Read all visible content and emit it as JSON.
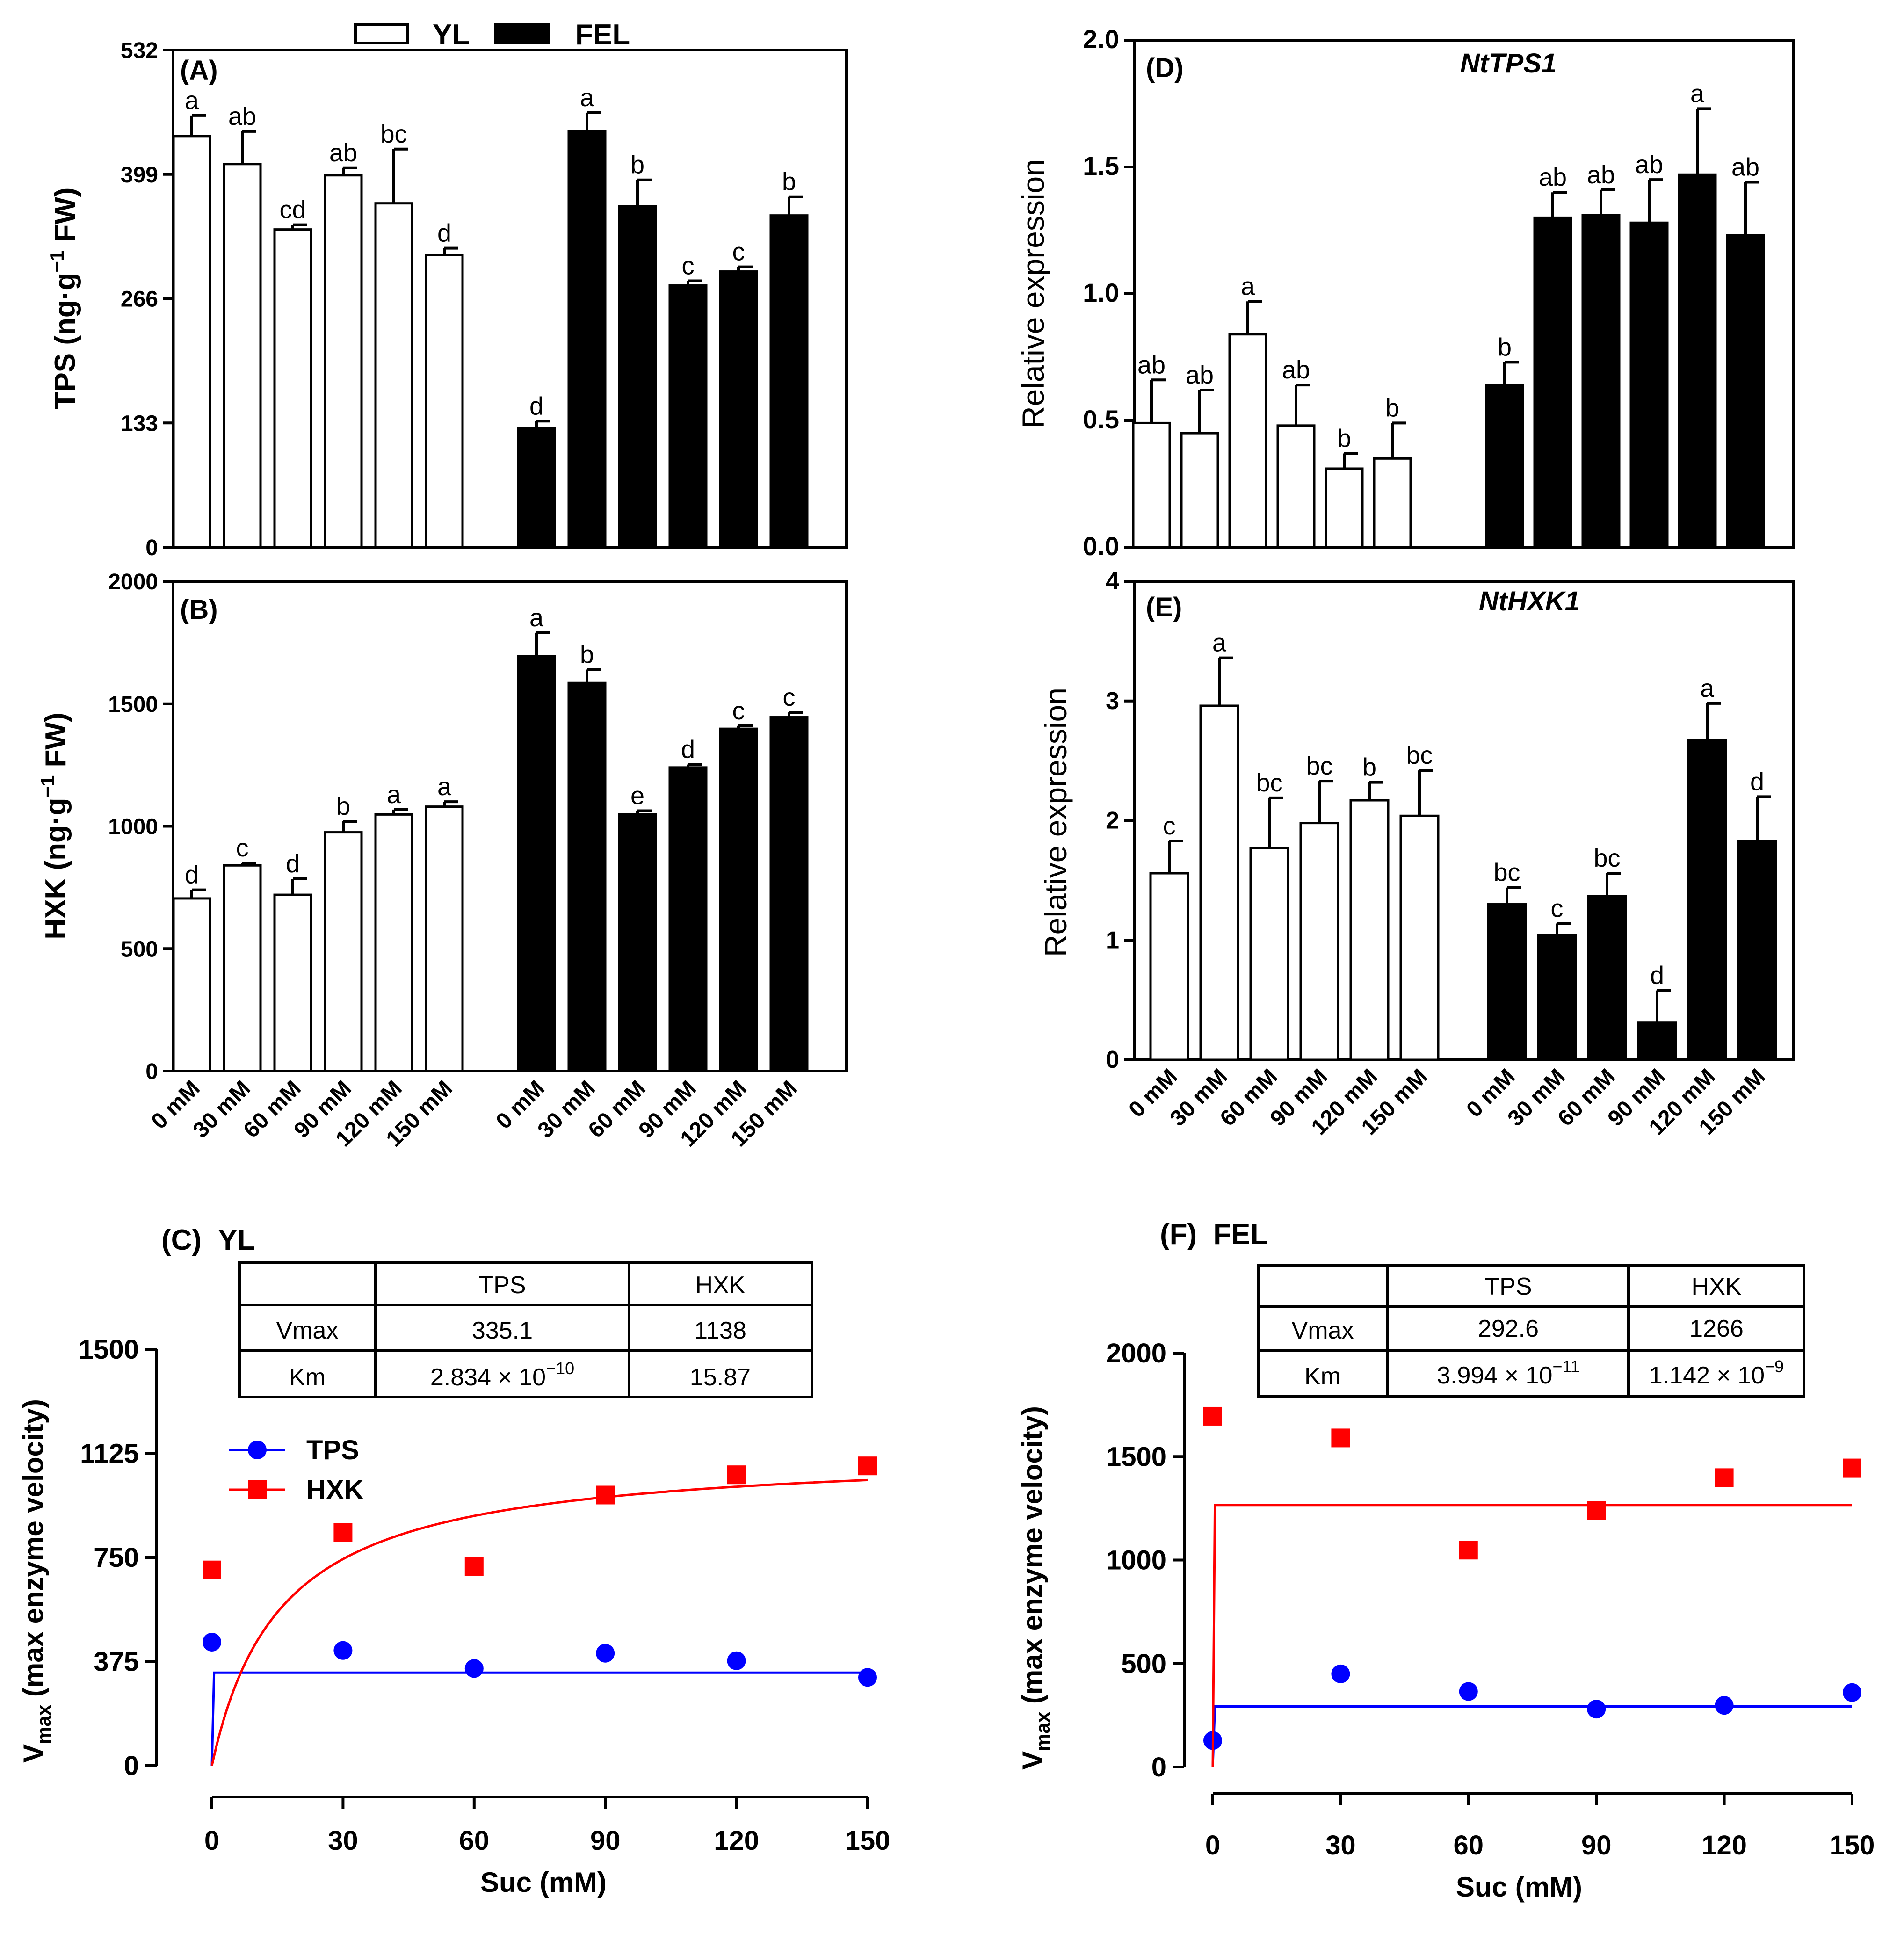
{
  "legend": {
    "yl_label": "YL",
    "fel_label": "FEL"
  },
  "colors": {
    "yl_fill": "#ffffff",
    "fel_fill": "#000000",
    "tps_series": "#0000ff",
    "hxk_series": "#ff0000",
    "axis": "#000000"
  },
  "chart_data": [
    {
      "id": "A",
      "panel_label": "(A)",
      "type": "bar",
      "title": "",
      "ylabel_main": "TPS (ng·g",
      "ylabel_sup": "−1",
      "ylabel_end": " FW)",
      "ylim": [
        0,
        532
      ],
      "yticks": [
        "0",
        "133",
        "266",
        "399",
        "532"
      ],
      "ytick_values": [
        0,
        133,
        266,
        399,
        532
      ],
      "categories": [
        "0 mM",
        "30 mM",
        "60 mM",
        "90 mM",
        "120 mM",
        "150 mM"
      ],
      "series": [
        {
          "name": "YL",
          "values": [
            440,
            410,
            340,
            398,
            368,
            313
          ],
          "errors": [
            22,
            35,
            5,
            8,
            58,
            7
          ],
          "letters": [
            "a",
            "ab",
            "cd",
            "ab",
            "bc",
            "d"
          ]
        },
        {
          "name": "FEL",
          "values": [
            127,
            445,
            365,
            280,
            295,
            355
          ],
          "errors": [
            8,
            20,
            28,
            5,
            5,
            20
          ],
          "letters": [
            "d",
            "a",
            "b",
            "c",
            "c",
            "b"
          ]
        }
      ]
    },
    {
      "id": "B",
      "panel_label": "(B)",
      "type": "bar",
      "title": "",
      "ylabel_main": "HXK (ng·g",
      "ylabel_sup": "−1",
      "ylabel_end": " FW)",
      "ylim": [
        0,
        2000
      ],
      "yticks": [
        "0",
        "500",
        "1000",
        "1500",
        "2000"
      ],
      "ytick_values": [
        0,
        500,
        1000,
        1500,
        2000
      ],
      "categories": [
        "0 mM",
        "30 mM",
        "60 mM",
        "90 mM",
        "120 mM",
        "150 mM"
      ],
      "series": [
        {
          "name": "YL",
          "values": [
            705,
            840,
            720,
            975,
            1048,
            1080
          ],
          "errors": [
            35,
            10,
            65,
            45,
            20,
            20
          ],
          "letters": [
            "d",
            "c",
            "d",
            "b",
            "a",
            "a"
          ]
        },
        {
          "name": "FEL",
          "values": [
            1695,
            1585,
            1048,
            1240,
            1398,
            1445
          ],
          "errors": [
            95,
            55,
            15,
            12,
            12,
            20
          ],
          "letters": [
            "a",
            "b",
            "e",
            "d",
            "c",
            "c"
          ]
        }
      ]
    },
    {
      "id": "D",
      "panel_label": "(D)",
      "type": "bar",
      "title": "NtTPS1",
      "ylabel_main": "Relative expression",
      "ylabel_sup": "",
      "ylabel_end": "",
      "ylim": [
        0,
        2.0
      ],
      "yticks": [
        "0.0",
        "0.5",
        "1.0",
        "1.5",
        "2.0"
      ],
      "ytick_values": [
        0,
        0.5,
        1.0,
        1.5,
        2.0
      ],
      "categories": [
        "0 mM",
        "30 mM",
        "60 mM",
        "90 mM",
        "120 mM",
        "150 mM"
      ],
      "series": [
        {
          "name": "YL",
          "values": [
            0.49,
            0.45,
            0.84,
            0.48,
            0.31,
            0.35
          ],
          "errors": [
            0.17,
            0.17,
            0.13,
            0.16,
            0.06,
            0.14
          ],
          "letters": [
            "ab",
            "ab",
            "a",
            "ab",
            "b",
            "b"
          ]
        },
        {
          "name": "FEL",
          "values": [
            0.64,
            1.3,
            1.31,
            1.28,
            1.47,
            1.23
          ],
          "errors": [
            0.09,
            0.1,
            0.1,
            0.17,
            0.26,
            0.21
          ],
          "letters": [
            "b",
            "ab",
            "ab",
            "ab",
            "a",
            "ab"
          ]
        }
      ]
    },
    {
      "id": "E",
      "panel_label": "(E)",
      "type": "bar",
      "title": "NtHXK1",
      "ylabel_main": "Relative expression",
      "ylabel_sup": "",
      "ylabel_end": "",
      "ylim": [
        0,
        4
      ],
      "yticks": [
        "0",
        "1",
        "2",
        "3",
        "4"
      ],
      "ytick_values": [
        0,
        1,
        2,
        3,
        4
      ],
      "categories": [
        "0 mM",
        "30 mM",
        "60 mM",
        "90 mM",
        "120 mM",
        "150 mM"
      ],
      "series": [
        {
          "name": "YL",
          "values": [
            1.56,
            2.96,
            1.77,
            1.98,
            2.17,
            2.04
          ],
          "errors": [
            0.27,
            0.4,
            0.42,
            0.35,
            0.15,
            0.38
          ],
          "letters": [
            "c",
            "a",
            "bc",
            "bc",
            "b",
            "bc"
          ]
        },
        {
          "name": "FEL",
          "values": [
            1.3,
            1.04,
            1.37,
            0.31,
            2.67,
            1.83
          ],
          "errors": [
            0.14,
            0.1,
            0.19,
            0.27,
            0.31,
            0.37
          ],
          "letters": [
            "bc",
            "c",
            "bc",
            "d",
            "a",
            "d"
          ]
        }
      ]
    },
    {
      "id": "C",
      "panel_label": "(C)",
      "type": "scatter",
      "title": "YL",
      "xlabel": "Suc (mM)",
      "ylabel_main": "V",
      "ylabel_sub": "max",
      "ylabel_end": " (max enzyme velocity)",
      "xlim": [
        0,
        150
      ],
      "xticks": [
        "0",
        "30",
        "60",
        "90",
        "120",
        "150"
      ],
      "xtick_values": [
        0,
        30,
        60,
        90,
        120,
        150
      ],
      "ylim": [
        0,
        1500
      ],
      "yticks": [
        "0",
        "375",
        "750",
        "1125",
        "1500"
      ],
      "ytick_values": [
        0,
        375,
        750,
        1125,
        1500
      ],
      "series": [
        {
          "name": "TPS",
          "marker": "circle",
          "x": [
            0,
            30,
            60,
            90,
            120,
            150
          ],
          "y": [
            445,
            415,
            350,
            405,
            378,
            318
          ],
          "fit": {
            "vmax": 335.1,
            "km": 2.834e-10
          }
        },
        {
          "name": "HXK",
          "marker": "square",
          "x": [
            0,
            30,
            60,
            90,
            120,
            150
          ],
          "y": [
            705,
            840,
            718,
            975,
            1048,
            1080
          ],
          "fit": {
            "vmax": 1138,
            "km": 15.87
          }
        }
      ],
      "table": {
        "headers": [
          "",
          "TPS",
          "HXK"
        ],
        "rows": [
          {
            "label": "Vmax",
            "tps": "335.1",
            "hxk": "1138"
          },
          {
            "label": "Km",
            "tps_mant": "2.834 × 10",
            "tps_exp": "−10",
            "hxk": "15.87"
          }
        ]
      },
      "legend": [
        {
          "label": "TPS"
        },
        {
          "label": "HXK"
        }
      ]
    },
    {
      "id": "F",
      "panel_label": "(F)",
      "type": "scatter",
      "title": "FEL",
      "xlabel": "Suc (mM)",
      "ylabel_main": "V",
      "ylabel_sub": "max",
      "ylabel_end": " (max enzyme velocity)",
      "xlim": [
        0,
        150
      ],
      "xticks": [
        "0",
        "30",
        "60",
        "90",
        "120",
        "150"
      ],
      "xtick_values": [
        0,
        30,
        60,
        90,
        120,
        150
      ],
      "ylim": [
        0,
        2000
      ],
      "yticks": [
        "0",
        "500",
        "1000",
        "1500",
        "2000"
      ],
      "ytick_values": [
        0,
        500,
        1000,
        1500,
        2000
      ],
      "series": [
        {
          "name": "TPS",
          "marker": "circle",
          "x": [
            0,
            30,
            60,
            90,
            120,
            150
          ],
          "y": [
            128,
            450,
            365,
            280,
            298,
            360
          ],
          "fit": {
            "vmax": 292.6,
            "km": 3.994e-11
          }
        },
        {
          "name": "HXK",
          "marker": "square",
          "x": [
            0,
            30,
            60,
            90,
            120,
            150
          ],
          "y": [
            1695,
            1590,
            1048,
            1240,
            1398,
            1445
          ],
          "fit": {
            "vmax": 1266,
            "km": 1.142e-09
          }
        }
      ],
      "table": {
        "headers": [
          "",
          "TPS",
          "HXK"
        ],
        "rows": [
          {
            "label": "Vmax",
            "tps": "292.6",
            "hxk": "1266"
          },
          {
            "label": "Km",
            "tps_mant": "3.994 × 10",
            "tps_exp": "−11",
            "hxk_mant": "1.142 × 10",
            "hxk_exp": "−9"
          }
        ]
      }
    }
  ]
}
